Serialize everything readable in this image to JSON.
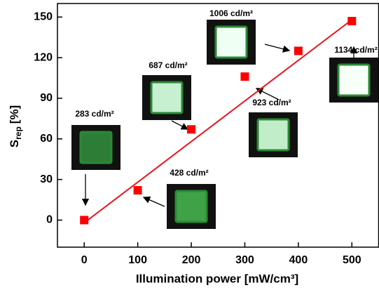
{
  "chart_data": {
    "type": "scatter",
    "ylabel": {
      "main": "S",
      "sub": "rep",
      "unit": "[%]"
    },
    "xlabel": "Illumination power [mW/cm³]",
    "x": [
      0,
      100,
      200,
      300,
      400,
      500
    ],
    "series": [
      {
        "color": "#ff0000",
        "values": [
          0,
          22,
          67,
          106,
          125,
          147
        ]
      }
    ],
    "fit": {
      "color": "#e8141e",
      "x": [
        0,
        500
      ],
      "values": [
        -2,
        148
      ]
    },
    "xlim": [
      -50,
      550
    ],
    "ylim": [
      -20,
      160
    ],
    "xticks": [
      0,
      100,
      200,
      300,
      400,
      500
    ],
    "yticks": [
      0,
      30,
      60,
      90,
      120,
      150
    ],
    "annotations": [
      {
        "text": "283 cd/m²"
      },
      {
        "text": "428 cd/m²"
      },
      {
        "text": "687 cd/m²"
      },
      {
        "text": "1006 cd/m²"
      },
      {
        "text": "923 cd/m²"
      },
      {
        "text": "1134 cd/m²"
      }
    ]
  }
}
